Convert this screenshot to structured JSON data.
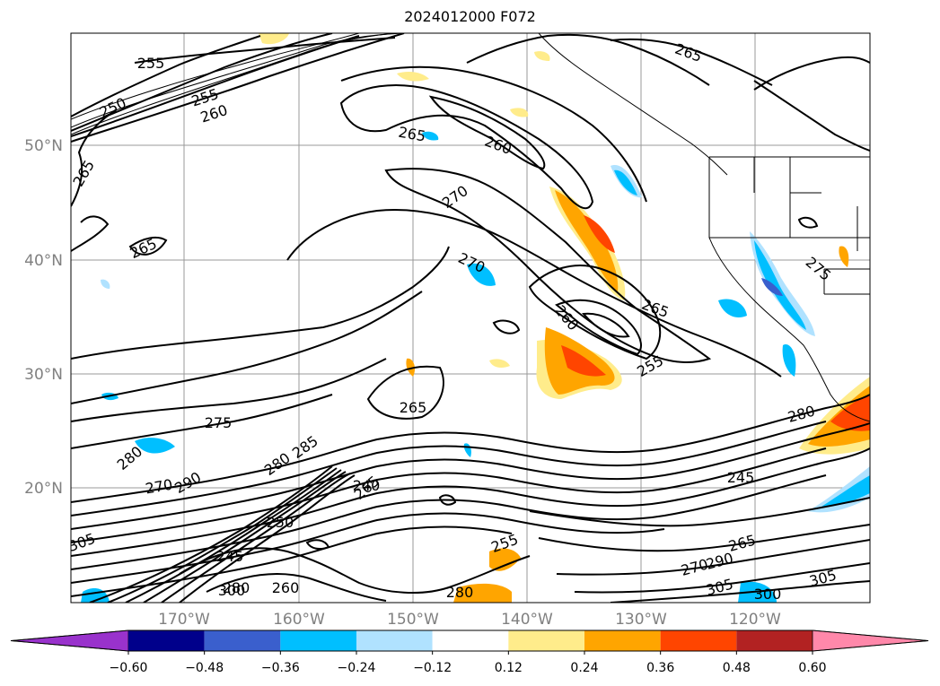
{
  "title": "2024012000 F072",
  "map": {
    "lat_labels": [
      "20°N",
      "30°N",
      "40°N",
      "50°N"
    ],
    "lon_labels": [
      "170°W",
      "160°W",
      "150°W",
      "140°W",
      "130°W",
      "120°W"
    ],
    "contour_labels": [
      "255",
      "255",
      "260",
      "250",
      "265",
      "265",
      "260",
      "270",
      "265",
      "270",
      "260",
      "265",
      "255",
      "265",
      "275",
      "280",
      "275",
      "280",
      "270",
      "280",
      "285",
      "290",
      "265",
      "250",
      "245",
      "300",
      "260",
      "280",
      "255",
      "280",
      "245",
      "265",
      "290",
      "270",
      "305",
      "300",
      "305",
      "240",
      "305",
      "265"
    ],
    "shaded_field_colors": {
      "positive": [
        "#ffec8b",
        "#ffa500",
        "#ff4500",
        "#b22222",
        "#ff88aa"
      ],
      "negative": [
        "#b0e2ff",
        "#00bfff",
        "#3a5fcd",
        "#00008b",
        "#9932cc"
      ]
    }
  },
  "colorbar": {
    "ticks": [
      "−0.60",
      "−0.48",
      "−0.36",
      "−0.24",
      "−0.12",
      "0.12",
      "0.24",
      "0.36",
      "0.48",
      "0.60"
    ],
    "levels": [
      -0.6,
      -0.48,
      -0.36,
      -0.24,
      -0.12,
      0.12,
      0.24,
      0.36,
      0.48,
      0.6
    ],
    "colors": [
      "#9932cc",
      "#00008b",
      "#3a5fcd",
      "#00bfff",
      "#b0e2ff",
      "#ffffff",
      "#ffec8b",
      "#ffa500",
      "#ff4500",
      "#b22222",
      "#ff88aa"
    ],
    "extend": "both"
  }
}
